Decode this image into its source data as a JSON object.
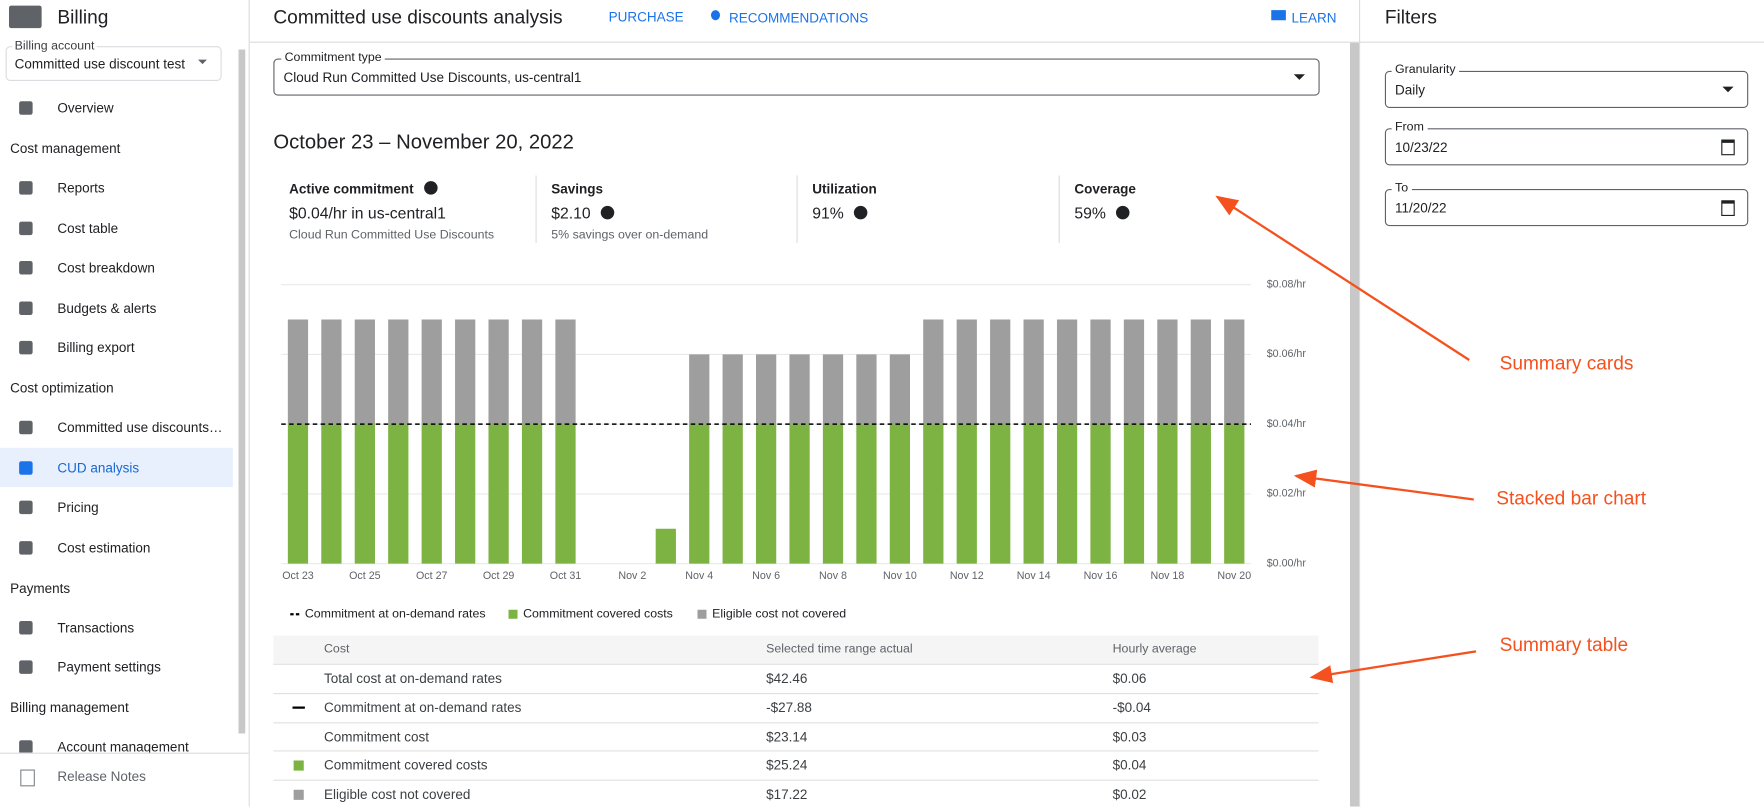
{
  "sidebar": {
    "title": "Billing",
    "account_label": "Billing account",
    "account": "Committed use discount test",
    "sections": [
      {
        "items": [
          "Overview"
        ]
      },
      {
        "heading": "Cost management",
        "items": [
          "Reports",
          "Cost table",
          "Cost breakdown",
          "Budgets & alerts",
          "Billing export"
        ]
      },
      {
        "heading": "Cost optimization",
        "items": [
          "Committed use discounts…",
          "CUD analysis",
          "Pricing",
          "Cost estimation"
        ]
      },
      {
        "heading": "Payments",
        "items": [
          "Transactions",
          "Payment settings"
        ]
      },
      {
        "heading": "Billing management",
        "items": [
          "Account management"
        ]
      }
    ],
    "footer": "Release Notes"
  },
  "header": {
    "title": "Committed use discounts analysis",
    "tabs": [
      "PURCHASE",
      "RECOMMENDATIONS"
    ],
    "learn": "LEARN"
  },
  "commitment_type": {
    "label": "Commitment type",
    "value": "Cloud Run Committed Use Discounts, us-central1"
  },
  "date_range": "October 23 – November 20, 2022",
  "cards": [
    {
      "title": "Active commitment",
      "value": "$0.04/hr in us-central1",
      "note": "Cloud Run Committed Use Discounts"
    },
    {
      "title": "Savings",
      "value": "$2.10",
      "note": "5% savings over on-demand"
    },
    {
      "title": "Utilization",
      "value": "91%"
    },
    {
      "title": "Coverage",
      "value": "59%"
    }
  ],
  "chart_data": {
    "type": "stacked-bar",
    "categories": [
      "Oct 23",
      null,
      "Oct 25",
      null,
      "Oct 27",
      null,
      "Oct 29",
      null,
      "Oct 31",
      null,
      "Nov 2",
      null,
      "Nov 4",
      null,
      "Nov 6",
      null,
      "Nov 8",
      null,
      "Nov 10",
      null,
      "Nov 12",
      null,
      "Nov 14",
      null,
      "Nov 16",
      null,
      "Nov 18",
      null,
      "Nov 20"
    ],
    "series": [
      {
        "name": "Commitment covered costs",
        "color": "#7cb342",
        "values": [
          0.04,
          0.04,
          0.04,
          0.04,
          0.04,
          0.04,
          0.04,
          0.04,
          0.04,
          null,
          null,
          0.01,
          0.04,
          0.04,
          0.04,
          0.04,
          0.04,
          0.04,
          0.04,
          0.04,
          0.04,
          0.04,
          0.04,
          0.04,
          0.04,
          0.04,
          0.04,
          0.04,
          0.04
        ]
      },
      {
        "name": "Eligible cost not covered",
        "color": "#9e9e9e",
        "values": [
          0.03,
          0.03,
          0.03,
          0.03,
          0.03,
          0.03,
          0.03,
          0.03,
          0.03,
          null,
          null,
          null,
          0.02,
          0.02,
          0.02,
          0.02,
          0.02,
          0.02,
          0.02,
          0.03,
          0.03,
          0.03,
          0.03,
          0.03,
          0.03,
          0.03,
          0.03,
          0.03,
          0.03
        ]
      }
    ],
    "reference_line": {
      "name": "Commitment at on-demand rates",
      "value": 0.04,
      "color": "#000000"
    },
    "ylim": [
      0,
      0.08
    ],
    "yticks": [
      {
        "value": 0,
        "label": "$0.00/hr"
      },
      {
        "value": 0.02,
        "label": "$0.02/hr"
      },
      {
        "value": 0.04,
        "label": "$0.04/hr"
      },
      {
        "value": 0.06,
        "label": "$0.06/hr"
      },
      {
        "value": 0.08,
        "label": "$0.08/hr"
      }
    ],
    "grid": true
  },
  "table": {
    "header": [
      "Cost",
      "Selected time range actual",
      "Hourly average"
    ],
    "rows": [
      [
        "Total cost at on-demand rates",
        "$42.46",
        "$0.06"
      ],
      [
        "Commitment at on-demand rates",
        "-$27.88",
        "-$0.04"
      ],
      [
        "Commitment cost",
        "$23.14",
        "$0.03"
      ],
      [
        "Commitment covered costs",
        "$25.24",
        "$0.04"
      ],
      [
        "Eligible cost not covered",
        "$17.22",
        "$0.02"
      ]
    ]
  },
  "filters": {
    "title": "Filters",
    "fields": [
      {
        "label": "Granularity",
        "value": "Daily"
      },
      {
        "label": "From",
        "value": "10/23/22"
      },
      {
        "label": "To",
        "value": "11/20/22"
      }
    ]
  },
  "annotations": [
    "Summary cards",
    "Stacked bar chart",
    "Summary table"
  ]
}
